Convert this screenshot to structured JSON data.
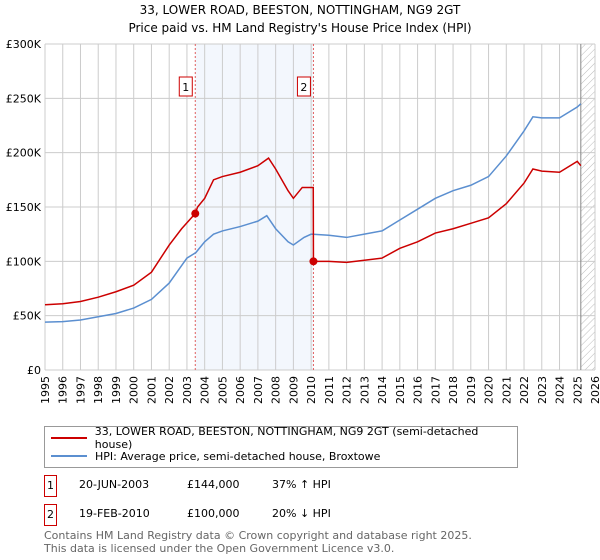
{
  "chart_data": {
    "type": "line",
    "title": "33, LOWER ROAD, BEESTON, NOTTINGHAM, NG9 2GT",
    "subtitle": "Price paid vs. HM Land Registry's House Price Index (HPI)",
    "ylim": [
      0,
      300000
    ],
    "xlim": [
      1995,
      2026
    ],
    "yticks": [
      {
        "v": 0,
        "label": "£0"
      },
      {
        "v": 50000,
        "label": "£50K"
      },
      {
        "v": 100000,
        "label": "£100K"
      },
      {
        "v": 150000,
        "label": "£150K"
      },
      {
        "v": 200000,
        "label": "£200K"
      },
      {
        "v": 250000,
        "label": "£250K"
      },
      {
        "v": 300000,
        "label": "£300K"
      }
    ],
    "xticks": [
      "1995",
      "1996",
      "1997",
      "1998",
      "1999",
      "2000",
      "2001",
      "2002",
      "2003",
      "2004",
      "2005",
      "2006",
      "2007",
      "2008",
      "2009",
      "2010",
      "2011",
      "2012",
      "2013",
      "2014",
      "2015",
      "2016",
      "2017",
      "2018",
      "2019",
      "2020",
      "2021",
      "2022",
      "2023",
      "2024",
      "2025",
      "2026"
    ],
    "shaded_range": [
      2003.47,
      2010.13
    ],
    "hatched_from": 2025.2,
    "series": [
      {
        "name": "33, LOWER ROAD, BEESTON, NOTTINGHAM, NG9 2GT (semi-detached house)",
        "color": "#cc0000",
        "x": [
          1995,
          1996,
          1997,
          1998,
          1999,
          2000,
          2001,
          2002,
          2002.7,
          2003.47,
          2003.6,
          2004,
          2004.5,
          2005,
          2006,
          2007,
          2007.6,
          2008,
          2008.7,
          2009,
          2009.5,
          2010.12,
          2010.13,
          2011,
          2012,
          2013,
          2014,
          2015,
          2016,
          2017,
          2018,
          2019,
          2020,
          2021,
          2022,
          2022.5,
          2023,
          2024,
          2025,
          2025.2
        ],
        "y": [
          60000,
          61000,
          63000,
          67000,
          72000,
          78000,
          90000,
          115000,
          130000,
          144000,
          150000,
          158000,
          175000,
          178000,
          182000,
          188000,
          195000,
          185000,
          165000,
          158000,
          168000,
          168000,
          100000,
          100000,
          99000,
          101000,
          103000,
          112000,
          118000,
          126000,
          130000,
          135000,
          140000,
          153000,
          172000,
          185000,
          183000,
          182000,
          192000,
          188000
        ]
      },
      {
        "name": "HPI: Average price, semi-detached house, Broxtowe",
        "color": "#5b8fd0",
        "x": [
          1995,
          1996,
          1997,
          1998,
          1999,
          2000,
          2001,
          2002,
          2003,
          2003.5,
          2004,
          2004.5,
          2005,
          2006,
          2007,
          2007.5,
          2008,
          2008.7,
          2009,
          2009.6,
          2010,
          2011,
          2012,
          2013,
          2014,
          2015,
          2016,
          2017,
          2018,
          2019,
          2020,
          2021,
          2022,
          2022.5,
          2023,
          2024,
          2025,
          2025.2
        ],
        "y": [
          44000,
          44500,
          46000,
          49000,
          52000,
          57000,
          65000,
          80000,
          103000,
          108000,
          118000,
          125000,
          128000,
          132000,
          137000,
          142000,
          130000,
          118000,
          115000,
          122000,
          125000,
          124000,
          122000,
          125000,
          128000,
          138000,
          148000,
          158000,
          165000,
          170000,
          178000,
          197000,
          220000,
          233000,
          232000,
          232000,
          242000,
          245000
        ]
      }
    ],
    "annotations": [
      {
        "label": "1",
        "x": 2003.47,
        "y": 144000
      },
      {
        "label": "2",
        "x": 2010.13,
        "y": 100000
      }
    ]
  },
  "transactions": [
    {
      "num": "1",
      "date": "20-JUN-2003",
      "price": "£144,000",
      "hpi": "37% ↑ HPI"
    },
    {
      "num": "2",
      "date": "19-FEB-2010",
      "price": "£100,000",
      "hpi": "20% ↓ HPI"
    }
  ],
  "footer": {
    "line1": "Contains HM Land Registry data © Crown copyright and database right 2025.",
    "line2": "This data is licensed under the Open Government Licence v3.0."
  }
}
